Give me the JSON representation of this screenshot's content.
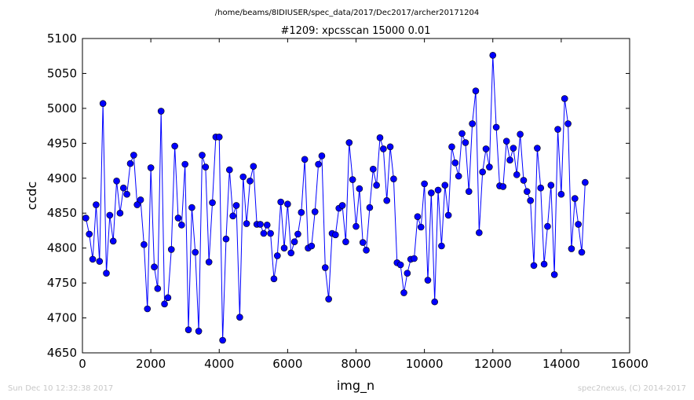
{
  "chart_data": {
    "type": "line",
    "suptitle": "/home/beams/8IDIUSER/spec_data/2017/Dec2017/archer20171204",
    "title": "#1209: xpcsscan 15000 0.01",
    "xlabel": "img_n",
    "ylabel": "ccdc",
    "xlim": [
      0,
      16000
    ],
    "ylim": [
      4650,
      5100
    ],
    "xticks": [
      0,
      2000,
      4000,
      6000,
      8000,
      10000,
      12000,
      14000,
      16000
    ],
    "yticks": [
      4650,
      4700,
      4750,
      4800,
      4850,
      4900,
      4950,
      5000,
      5050,
      5100
    ],
    "xtick_labels": [
      "0",
      "2000",
      "4000",
      "6000",
      "8000",
      "10000",
      "12000",
      "14000",
      "16000"
    ],
    "ytick_labels": [
      "4650",
      "4700",
      "4750",
      "4800",
      "4850",
      "4900",
      "4950",
      "5000",
      "5050",
      "5100"
    ],
    "grid": false,
    "line_color": "#0000ff",
    "marker_color": "#0000ff",
    "x_step": 100,
    "x_start": 100,
    "y": [
      4843,
      4820,
      4784,
      4862,
      4781,
      5007,
      4764,
      4847,
      4810,
      4896,
      4850,
      4886,
      4877,
      4921,
      4933,
      4862,
      4869,
      4805,
      4713,
      4915,
      4773,
      4742,
      4996,
      4720,
      4729,
      4798,
      4946,
      4843,
      4833,
      4920,
      4683,
      4858,
      4794,
      4681,
      4933,
      4916,
      4780,
      4865,
      4959,
      4959,
      4668,
      4813,
      4912,
      4846,
      4861,
      4701,
      4902,
      4835,
      4896,
      4917,
      4834,
      4834,
      4821,
      4833,
      4821,
      4756,
      4789,
      4866,
      4800,
      4863,
      4793,
      4809,
      4820,
      4851,
      4927,
      4800,
      4803,
      4852,
      4920,
      4932,
      4772,
      4727,
      4821,
      4819,
      4857,
      4861,
      4809,
      4951,
      4898,
      4831,
      4885,
      4808,
      4797,
      4858,
      4913,
      4890,
      4958,
      4942,
      4868,
      4945,
      4899,
      4779,
      4776,
      4736,
      4764,
      4784,
      4785,
      4845,
      4830,
      4892,
      4754,
      4879,
      4723,
      4883,
      4803,
      4890,
      4847,
      4945,
      4922,
      4903,
      4964,
      4951,
      4881,
      4978,
      5025,
      4822,
      4909,
      4942,
      4916,
      5076,
      4973,
      4889,
      4888,
      4953,
      4926,
      4943,
      4905,
      4963,
      4897,
      4881,
      4868,
      4775,
      4943,
      4886,
      4777,
      4831,
      4890,
      4762,
      4970,
      4877,
      5014,
      4978,
      4799,
      4871,
      4834,
      4794,
      4894
    ]
  },
  "footer": {
    "left": "Sun Dec 10 12:32:38 2017",
    "right": "spec2nexus, (C) 2014-2017"
  }
}
